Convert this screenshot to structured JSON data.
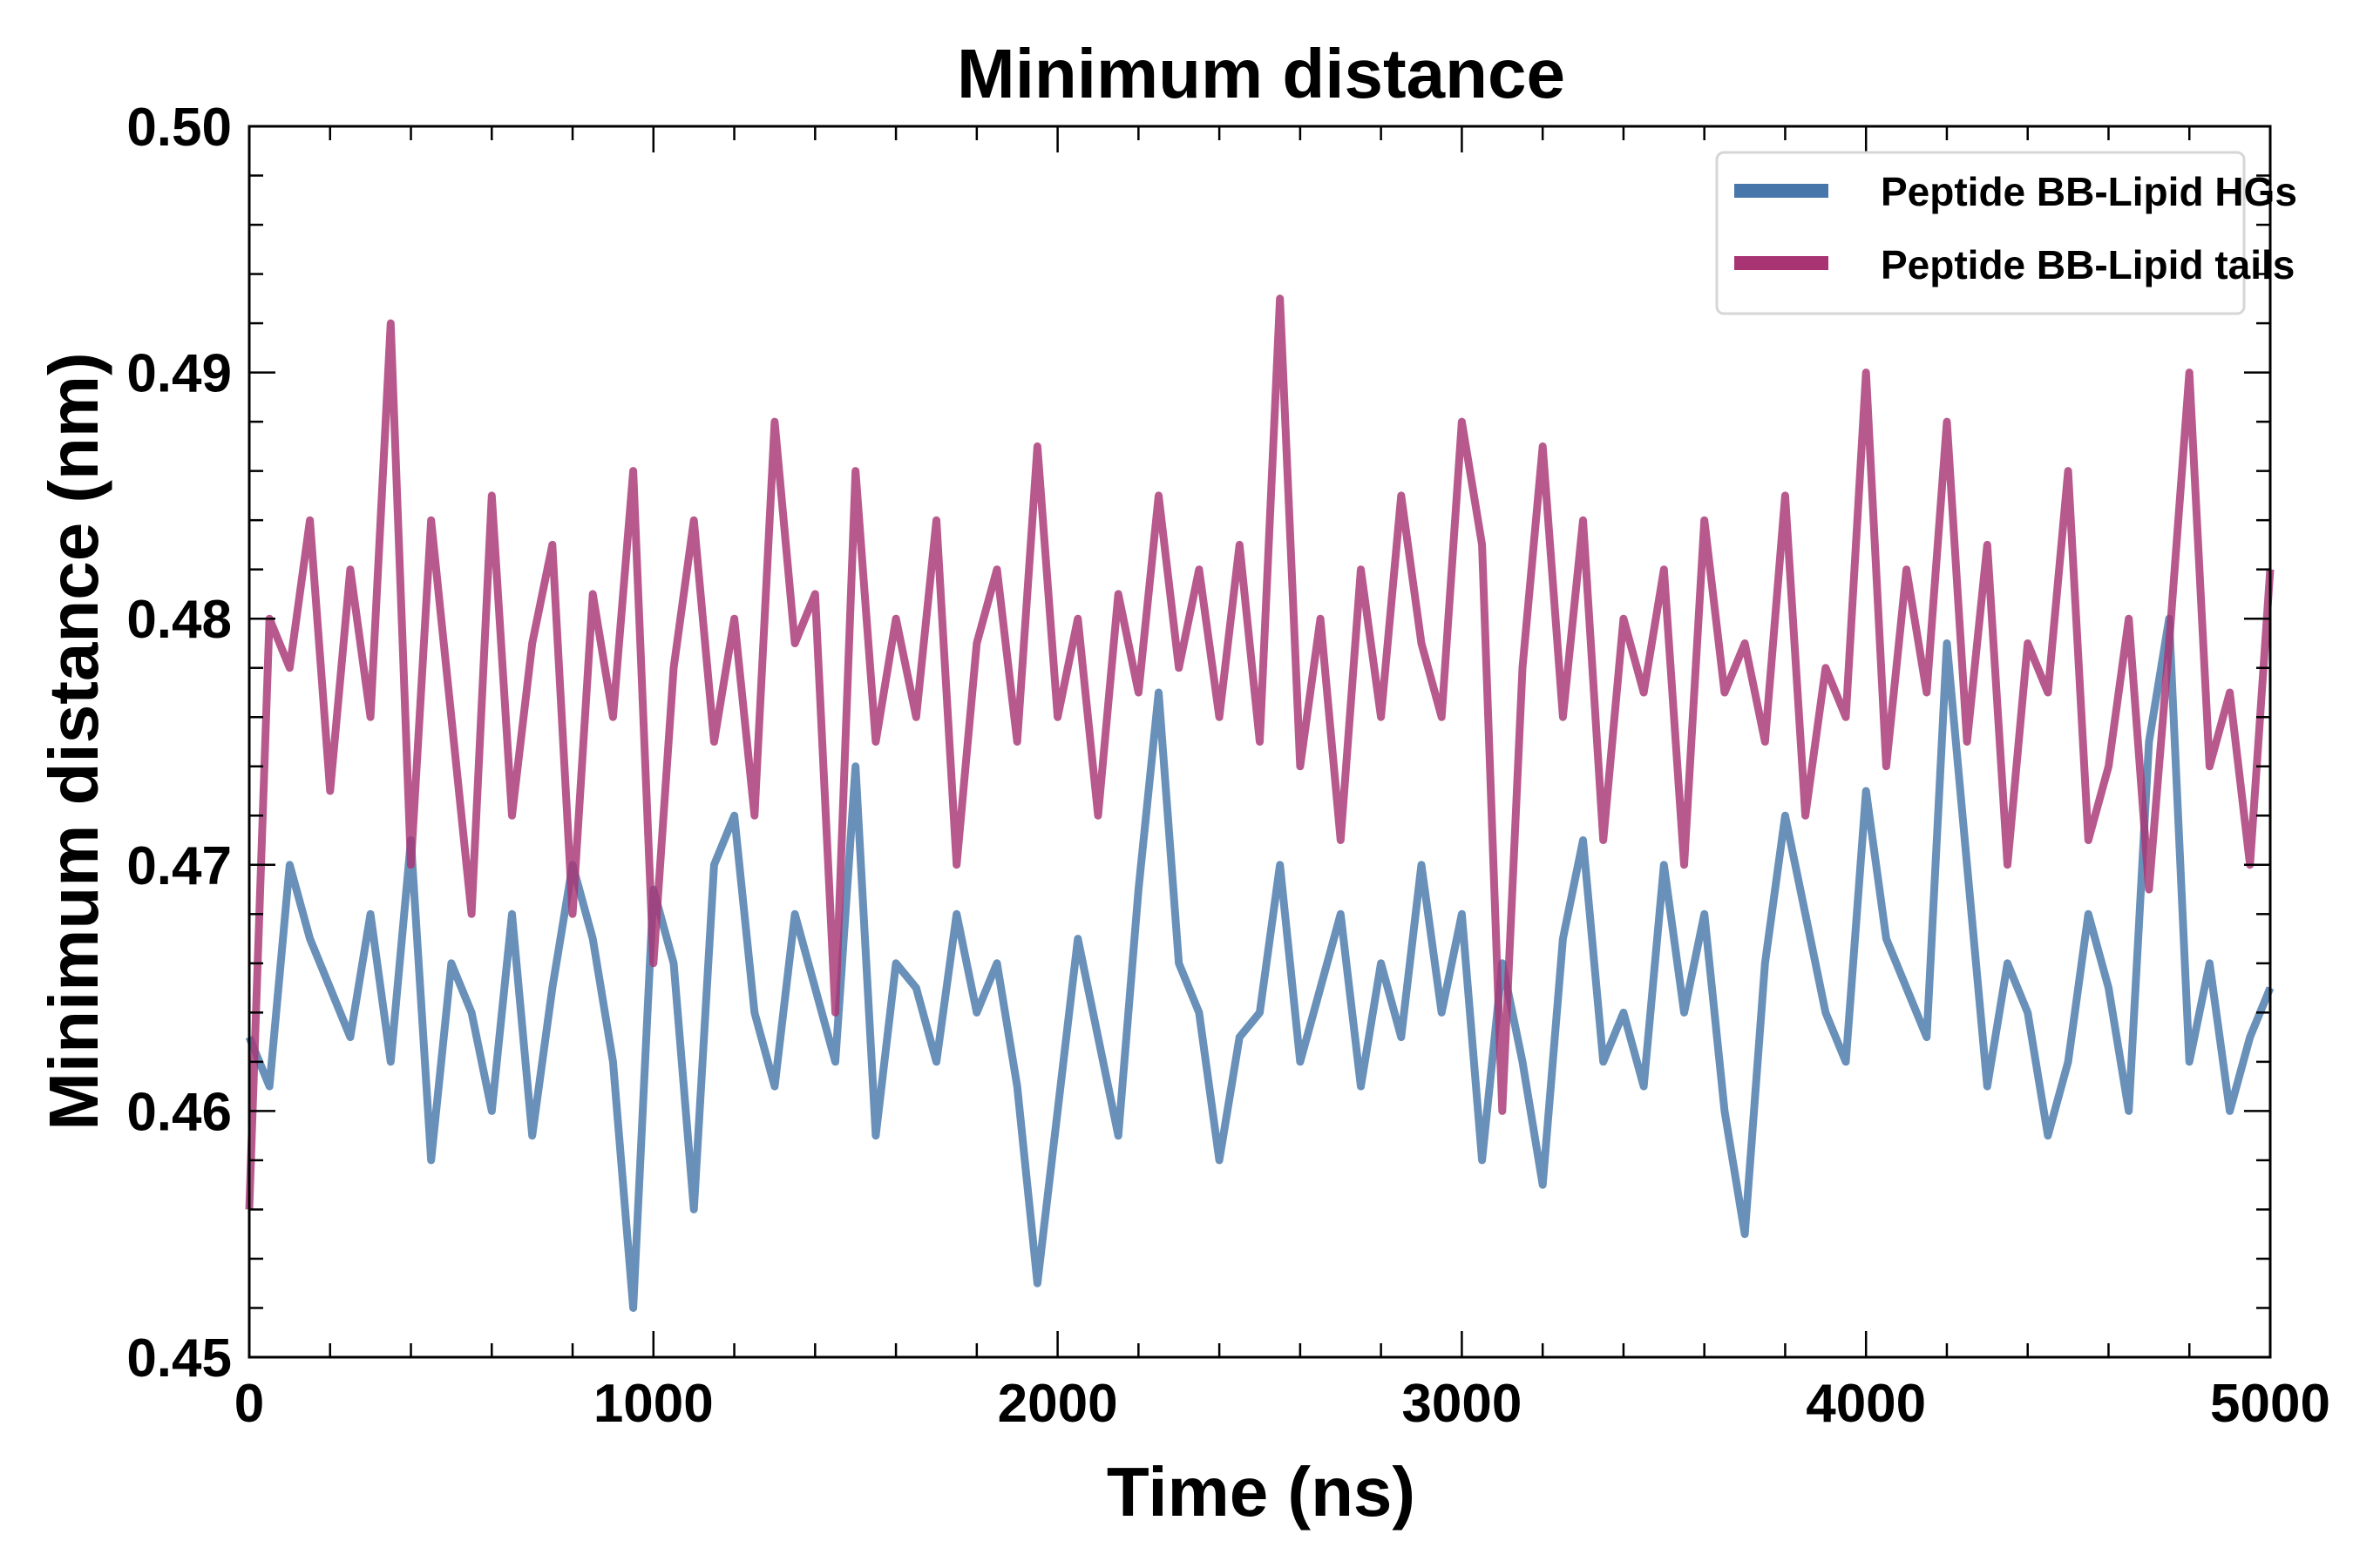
{
  "chart_data": {
    "type": "line",
    "title": "Minimum distance",
    "xlabel": "Time (ns)",
    "ylabel": "Minimum distance (nm)",
    "xlim": [
      0,
      5000
    ],
    "ylim": [
      0.45,
      0.5
    ],
    "x_ticks": [
      "0",
      "1000",
      "2000",
      "3000",
      "4000",
      "5000"
    ],
    "y_ticks": [
      "0.45",
      "0.46",
      "0.47",
      "0.48",
      "0.49",
      "0.50"
    ],
    "x_minor_step": 200,
    "y_minor_step": 0.002,
    "grid": false,
    "legend_position": "top-right",
    "x_step": 50,
    "series": [
      {
        "name": "Peptide BB-Lipid HGs",
        "color": "#4777aa",
        "values": [
          0.463,
          0.461,
          0.47,
          0.467,
          0.465,
          0.463,
          0.468,
          0.462,
          0.471,
          0.458,
          0.466,
          0.464,
          0.46,
          0.468,
          0.459,
          0.465,
          0.47,
          0.467,
          0.462,
          0.452,
          0.469,
          0.466,
          0.456,
          0.47,
          0.472,
          0.464,
          0.461,
          0.468,
          0.465,
          0.462,
          0.474,
          0.459,
          0.466,
          0.465,
          0.462,
          0.468,
          0.464,
          0.466,
          0.461,
          0.453,
          0.46,
          0.467,
          0.463,
          0.459,
          0.469,
          0.477,
          0.466,
          0.464,
          0.458,
          0.463,
          0.464,
          0.47,
          0.462,
          0.465,
          0.468,
          0.461,
          0.466,
          0.463,
          0.47,
          0.464,
          0.468,
          0.458,
          0.466,
          0.462,
          0.457,
          0.467,
          0.471,
          0.462,
          0.464,
          0.461,
          0.47,
          0.464,
          0.468,
          0.46,
          0.455,
          0.466,
          0.472,
          0.468,
          0.464,
          0.462,
          0.473,
          0.467,
          0.465,
          0.463,
          0.479,
          0.47,
          0.461,
          0.466,
          0.464,
          0.459,
          0.462,
          0.468,
          0.465,
          0.46,
          0.475,
          0.48,
          0.462,
          0.466,
          0.46,
          0.463,
          0.465
        ]
      },
      {
        "name": "Peptide BB-Lipid tails",
        "color": "#a83474",
        "values": [
          0.456,
          0.48,
          0.478,
          0.484,
          0.473,
          0.482,
          0.476,
          0.492,
          0.47,
          0.484,
          0.476,
          0.468,
          0.485,
          0.472,
          0.479,
          0.483,
          0.468,
          0.481,
          0.476,
          0.486,
          0.466,
          0.478,
          0.484,
          0.475,
          0.48,
          0.472,
          0.488,
          0.479,
          0.481,
          0.464,
          0.486,
          0.475,
          0.48,
          0.476,
          0.484,
          0.47,
          0.479,
          0.482,
          0.475,
          0.487,
          0.476,
          0.48,
          0.472,
          0.481,
          0.477,
          0.485,
          0.478,
          0.482,
          0.476,
          0.483,
          0.475,
          0.493,
          0.474,
          0.48,
          0.471,
          0.482,
          0.476,
          0.485,
          0.479,
          0.476,
          0.488,
          0.483,
          0.46,
          0.478,
          0.487,
          0.476,
          0.484,
          0.471,
          0.48,
          0.477,
          0.482,
          0.47,
          0.484,
          0.477,
          0.479,
          0.475,
          0.485,
          0.472,
          0.478,
          0.476,
          0.49,
          0.474,
          0.482,
          0.477,
          0.488,
          0.475,
          0.483,
          0.47,
          0.479,
          0.477,
          0.486,
          0.471,
          0.474,
          0.48,
          0.469,
          0.479,
          0.49,
          0.474,
          0.477,
          0.47,
          0.482
        ]
      }
    ]
  }
}
